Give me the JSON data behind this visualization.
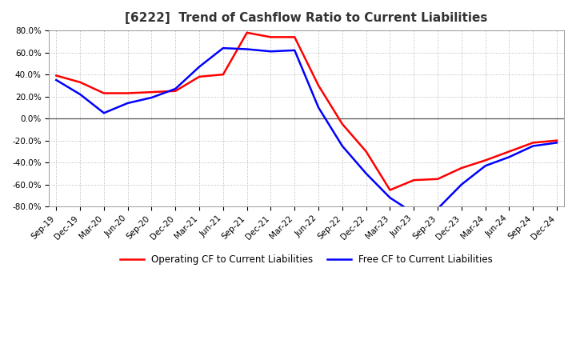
{
  "title": "[6222]  Trend of Cashflow Ratio to Current Liabilities",
  "x_labels": [
    "Sep-19",
    "Dec-19",
    "Mar-20",
    "Jun-20",
    "Sep-20",
    "Dec-20",
    "Mar-21",
    "Jun-21",
    "Sep-21",
    "Dec-21",
    "Mar-22",
    "Jun-22",
    "Sep-22",
    "Dec-22",
    "Mar-23",
    "Jun-23",
    "Sep-23",
    "Dec-23",
    "Mar-24",
    "Jun-24",
    "Sep-24",
    "Dec-24"
  ],
  "operating_cf": [
    0.39,
    0.33,
    0.23,
    0.23,
    0.24,
    0.25,
    0.38,
    0.4,
    0.78,
    0.74,
    0.74,
    0.3,
    -0.05,
    -0.3,
    -0.65,
    -0.56,
    -0.55,
    -0.45,
    -0.38,
    -0.3,
    -0.22,
    -0.2
  ],
  "free_cf": [
    0.35,
    0.22,
    0.05,
    0.14,
    0.19,
    0.27,
    0.47,
    0.64,
    0.63,
    0.61,
    0.62,
    0.1,
    -0.25,
    -0.5,
    -0.72,
    -0.86,
    -0.82,
    -0.6,
    -0.43,
    -0.35,
    -0.25,
    -0.22
  ],
  "operating_color": "#FF0000",
  "free_color": "#0000FF",
  "ylim": [
    -0.8,
    0.8
  ],
  "ytick_values": [
    -0.8,
    -0.6,
    -0.4,
    -0.2,
    0.0,
    0.2,
    0.4,
    0.6,
    0.8
  ],
  "ytick_labels": [
    "-80.0%",
    "-60.0%",
    "-40.0%",
    "-20.0%",
    "0.0%",
    "20.0%",
    "40.0%",
    "60.0%",
    "80.0%"
  ],
  "bg_color": "#FFFFFF",
  "grid_color": "#AAAAAA",
  "zero_line_color": "#555555",
  "legend_op": "Operating CF to Current Liabilities",
  "legend_free": "Free CF to Current Liabilities",
  "title_fontsize": 11,
  "axis_label_fontsize": 7.5,
  "legend_fontsize": 8.5,
  "line_width": 1.8
}
